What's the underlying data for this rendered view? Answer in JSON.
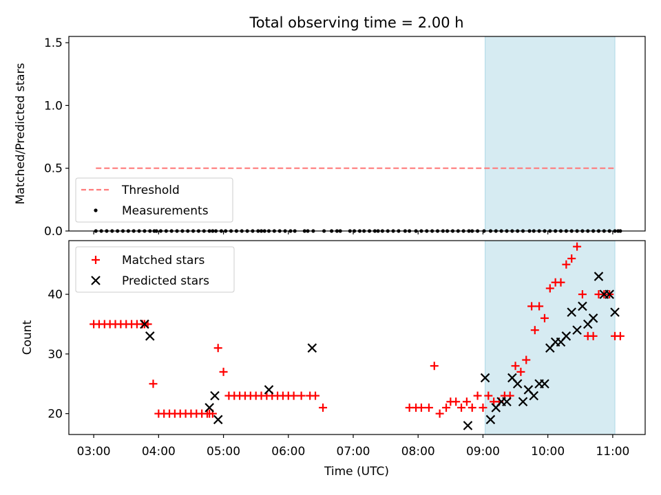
{
  "title": "Total observing time = 2.00 h",
  "chart_data": [
    {
      "type": "scatter",
      "ylabel": "Matched/Predicted stars",
      "ylim": [
        0,
        1.55
      ],
      "yticks": [
        0.0,
        0.5,
        1.0,
        1.5
      ],
      "ytick_labels": [
        "0.0",
        "0.5",
        "1.0",
        "1.5"
      ],
      "highlight_span": [
        "09:02",
        "11:02"
      ],
      "threshold": {
        "name": "Threshold",
        "y": 0.5,
        "x_range": [
          "03:02",
          "11:02"
        ],
        "color": "#ff7b7b",
        "style": "dashed"
      },
      "series": [
        {
          "name": "Measurements",
          "color": "#000000",
          "marker": "dot",
          "x": [
            "03:02",
            "03:07",
            "03:12",
            "03:17",
            "03:22",
            "03:27",
            "03:32",
            "03:37",
            "03:42",
            "03:47",
            "03:52",
            "03:56",
            "03:58",
            "04:02",
            "04:07",
            "04:12",
            "04:17",
            "04:22",
            "04:27",
            "04:32",
            "04:37",
            "04:42",
            "04:47",
            "04:50",
            "04:53",
            "04:58",
            "05:02",
            "05:07",
            "05:12",
            "05:17",
            "05:22",
            "05:27",
            "05:32",
            "05:35",
            "05:38",
            "05:42",
            "05:47",
            "05:52",
            "05:57",
            "06:02",
            "06:06",
            "06:15",
            "06:18",
            "06:23",
            "06:33",
            "06:40",
            "06:45",
            "06:48",
            "06:57",
            "07:01",
            "07:06",
            "07:10",
            "07:15",
            "07:20",
            "07:23",
            "07:27",
            "07:32",
            "07:37",
            "07:42",
            "07:48",
            "07:52",
            "07:58",
            "08:03",
            "08:08",
            "08:13",
            "08:18",
            "08:23",
            "08:27",
            "08:32",
            "08:37",
            "08:42",
            "08:47",
            "08:50",
            "08:55",
            "09:01",
            "09:07",
            "09:12",
            "09:17",
            "09:22",
            "09:27",
            "09:32",
            "09:37",
            "09:43",
            "09:47",
            "09:52",
            "09:57",
            "10:02",
            "10:07",
            "10:12",
            "10:17",
            "10:22",
            "10:27",
            "10:32",
            "10:37",
            "10:42",
            "10:47",
            "10:52",
            "10:57",
            "11:02",
            "11:05",
            "11:07"
          ],
          "y": [
            0,
            0,
            0,
            0,
            0,
            0,
            0,
            0,
            0,
            0,
            0,
            0,
            0,
            0,
            0,
            0,
            0,
            0,
            0,
            0,
            0,
            0,
            0,
            0,
            0,
            0,
            0,
            0,
            0,
            0,
            0,
            0,
            0,
            0,
            0,
            0,
            0,
            0,
            0,
            0,
            0,
            0,
            0,
            0,
            0,
            0,
            0,
            0,
            0,
            0,
            0,
            0,
            0,
            0,
            0,
            0,
            0,
            0,
            0,
            0,
            0,
            0,
            0,
            0,
            0,
            0,
            0,
            0,
            0,
            0,
            0,
            0,
            0,
            0,
            0,
            0,
            0,
            0,
            0,
            0,
            0,
            0,
            0,
            0,
            0,
            0,
            0,
            0,
            0,
            0,
            0,
            0,
            0,
            0,
            0,
            0,
            0,
            0,
            0,
            0,
            0
          ]
        }
      ]
    },
    {
      "type": "scatter",
      "xlabel": "Time (UTC)",
      "ylabel": "Count",
      "ylim": [
        16.5,
        49
      ],
      "yticks": [
        20,
        30,
        40
      ],
      "ytick_labels": [
        "20",
        "30",
        "40"
      ],
      "xticks": [
        "03:00",
        "04:00",
        "05:00",
        "06:00",
        "07:00",
        "08:00",
        "09:00",
        "10:00",
        "11:00"
      ],
      "highlight_span": [
        "09:02",
        "11:02"
      ],
      "series": [
        {
          "name": "Matched stars",
          "color": "#ff0000",
          "marker": "plus",
          "x": [
            "03:00",
            "03:05",
            "03:10",
            "03:15",
            "03:20",
            "03:25",
            "03:30",
            "03:35",
            "03:40",
            "03:45",
            "03:47",
            "03:50",
            "03:55",
            "04:00",
            "04:05",
            "04:10",
            "04:15",
            "04:20",
            "04:25",
            "04:30",
            "04:35",
            "04:40",
            "04:45",
            "04:47",
            "04:50",
            "04:55",
            "05:00",
            "05:05",
            "05:10",
            "05:15",
            "05:20",
            "05:25",
            "05:30",
            "05:35",
            "05:40",
            "05:45",
            "05:50",
            "05:55",
            "06:00",
            "06:05",
            "06:12",
            "06:20",
            "06:25",
            "06:32",
            "07:52",
            "07:58",
            "08:03",
            "08:10",
            "08:15",
            "08:20",
            "08:26",
            "08:30",
            "08:35",
            "08:40",
            "08:45",
            "08:50",
            "08:55",
            "09:00",
            "09:05",
            "09:10",
            "09:15",
            "09:20",
            "09:25",
            "09:30",
            "09:35",
            "09:40",
            "09:45",
            "09:48",
            "09:52",
            "09:57",
            "10:02",
            "10:07",
            "10:12",
            "10:17",
            "10:22",
            "10:27",
            "10:32",
            "10:37",
            "10:42",
            "10:47",
            "10:52",
            "10:57",
            "11:02",
            "11:07"
          ],
          "y": [
            35,
            35,
            35,
            35,
            35,
            35,
            35,
            35,
            35,
            35,
            35,
            35,
            25,
            20,
            20,
            20,
            20,
            20,
            20,
            20,
            20,
            20,
            20,
            20,
            20,
            31,
            27,
            23,
            23,
            23,
            23,
            23,
            23,
            23,
            23,
            23,
            23,
            23,
            23,
            23,
            23,
            23,
            23,
            21,
            21,
            21,
            21,
            21,
            28,
            20,
            21,
            22,
            22,
            21,
            22,
            21,
            23,
            21,
            23,
            22,
            22,
            23,
            23,
            28,
            27,
            29,
            38,
            34,
            38,
            36,
            41,
            42,
            42,
            45,
            46,
            48,
            40,
            33,
            33,
            40,
            40,
            40,
            33,
            33
          ]
        },
        {
          "name": "Predicted stars",
          "color": "#000000",
          "marker": "x",
          "x": [
            "03:47",
            "03:52",
            "04:47",
            "04:52",
            "04:55",
            "05:42",
            "06:22",
            "08:46",
            "09:02",
            "09:07",
            "09:12",
            "09:17",
            "09:22",
            "09:27",
            "09:32",
            "09:37",
            "09:42",
            "09:47",
            "09:52",
            "09:57",
            "10:02",
            "10:07",
            "10:12",
            "10:17",
            "10:22",
            "10:27",
            "10:32",
            "10:37",
            "10:42",
            "10:47",
            "10:52",
            "10:57",
            "11:02"
          ],
          "y": [
            35,
            33,
            21,
            23,
            19,
            24,
            31,
            18,
            26,
            19,
            21,
            22,
            22,
            26,
            25,
            22,
            24,
            23,
            25,
            25,
            31,
            32,
            32,
            33,
            37,
            34,
            38,
            35,
            36,
            43,
            40,
            40,
            37
          ]
        }
      ]
    }
  ]
}
